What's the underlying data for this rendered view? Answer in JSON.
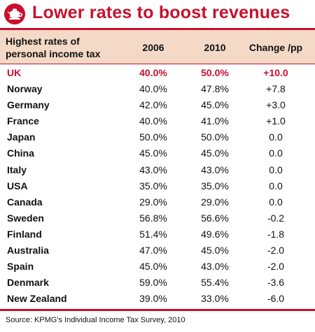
{
  "title": "Lower rates to boost revenues",
  "source": "Source: KPMG's Individual Income Tax Survey, 2010",
  "colors": {
    "accent": "#c8102e",
    "header_bg": "#f4d9c7"
  },
  "logo_icon": "teapot-logo",
  "chart_data": {
    "type": "table",
    "title": "Lower rates to boost revenues",
    "columns": [
      "Highest rates of personal income tax",
      "2006",
      "2010",
      "Change /pp"
    ],
    "header": {
      "label_line1": "Highest rates of",
      "label_line2": "personal income tax",
      "col1": "2006",
      "col2": "2010",
      "col3": "Change /pp"
    },
    "rows": [
      {
        "country": "UK",
        "y2006": "40.0%",
        "y2010": "50.0%",
        "change": "+10.0"
      },
      {
        "country": "Norway",
        "y2006": "40.0%",
        "y2010": "47.8%",
        "change": "+7.8"
      },
      {
        "country": "Germany",
        "y2006": "42.0%",
        "y2010": "45.0%",
        "change": "+3.0"
      },
      {
        "country": "France",
        "y2006": "40.0%",
        "y2010": "41.0%",
        "change": "+1.0"
      },
      {
        "country": "Japan",
        "y2006": "50.0%",
        "y2010": "50.0%",
        "change": "0.0"
      },
      {
        "country": "China",
        "y2006": "45.0%",
        "y2010": "45.0%",
        "change": "0.0"
      },
      {
        "country": "Italy",
        "y2006": "43.0%",
        "y2010": "43.0%",
        "change": "0.0"
      },
      {
        "country": "USA",
        "y2006": "35.0%",
        "y2010": "35.0%",
        "change": "0.0"
      },
      {
        "country": "Canada",
        "y2006": "29.0%",
        "y2010": "29.0%",
        "change": "0.0"
      },
      {
        "country": "Sweden",
        "y2006": "56.8%",
        "y2010": "56.6%",
        "change": "-0.2"
      },
      {
        "country": "Finland",
        "y2006": "51.4%",
        "y2010": "49.6%",
        "change": "-1.8"
      },
      {
        "country": "Australia",
        "y2006": "47.0%",
        "y2010": "45.0%",
        "change": "-2.0"
      },
      {
        "country": "Spain",
        "y2006": "45.0%",
        "y2010": "43.0%",
        "change": "-2.0"
      },
      {
        "country": "Denmark",
        "y2006": "59.0%",
        "y2010": "55.4%",
        "change": "-3.6"
      },
      {
        "country": "New Zealand",
        "y2006": "39.0%",
        "y2010": "33.0%",
        "change": "-6.0"
      }
    ],
    "highlighted_row": "UK"
  }
}
